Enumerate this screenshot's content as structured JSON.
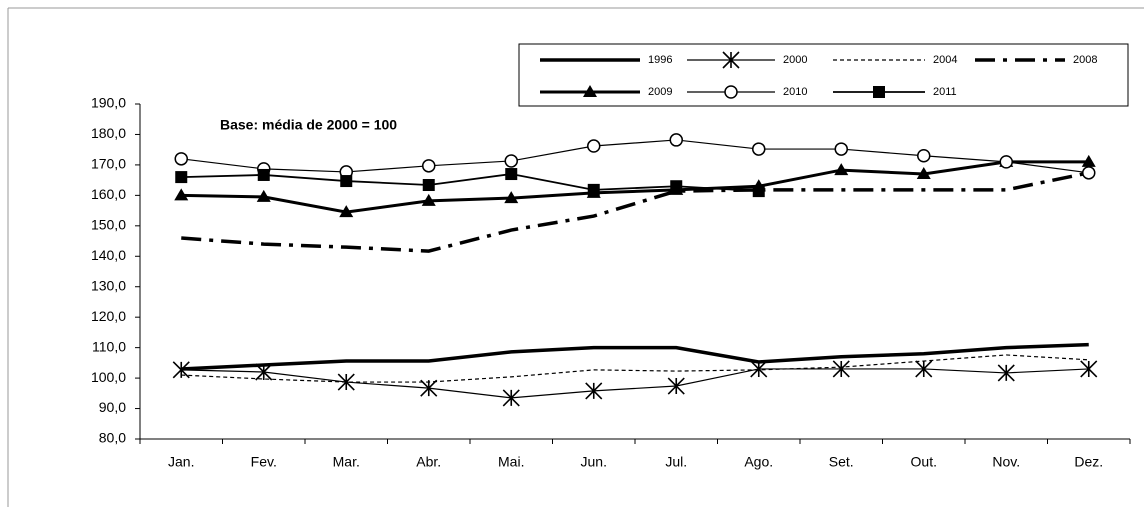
{
  "chart_data": {
    "type": "line",
    "annotation": "Base: média de 2000 = 100",
    "categories": [
      "Jan.",
      "Fev.",
      "Mar.",
      "Abr.",
      "Mai.",
      "Jun.",
      "Jul.",
      "Ago.",
      "Set.",
      "Out.",
      "Nov.",
      "Dez."
    ],
    "ylim": [
      80,
      190
    ],
    "yticks": [
      {
        "value": 80,
        "label": "80,0"
      },
      {
        "value": 90,
        "label": "90,0"
      },
      {
        "value": 100,
        "label": "100,0"
      },
      {
        "value": 110,
        "label": "110,0"
      },
      {
        "value": 120,
        "label": "120,0"
      },
      {
        "value": 130,
        "label": "130,0"
      },
      {
        "value": 140,
        "label": "140,0"
      },
      {
        "value": 150,
        "label": "150,0"
      },
      {
        "value": 160,
        "label": "160,0"
      },
      {
        "value": 170,
        "label": "170,0"
      },
      {
        "value": 180,
        "label": "180,0"
      },
      {
        "value": 190,
        "label": "190,0"
      }
    ],
    "grid": false,
    "legend": "top-right",
    "series": [
      {
        "name": "1996",
        "color": "#000000",
        "width": 3.5,
        "dash": "none",
        "marker": "none",
        "values": [
          103,
          104.3,
          105.6,
          105.6,
          108.6,
          110,
          110,
          105.3,
          107,
          108,
          110,
          111
        ]
      },
      {
        "name": "2000",
        "color": "#000000",
        "width": 1.2,
        "dash": "none",
        "marker": "asterisk",
        "values": [
          102.7,
          102,
          98.7,
          96.7,
          93.5,
          95.8,
          97.4,
          103,
          103,
          103,
          101.7,
          103
        ]
      },
      {
        "name": "2004",
        "color": "#000000",
        "width": 1.2,
        "dash": "4 3",
        "marker": "none",
        "values": [
          101,
          99.7,
          98.7,
          98.7,
          100.4,
          102.7,
          102.3,
          102.7,
          103.6,
          105.6,
          107.6,
          106
        ]
      },
      {
        "name": "2008",
        "color": "#000000",
        "width": 3.5,
        "dash": "20 8 4 8",
        "marker": "none",
        "values": [
          146,
          144,
          143,
          141.7,
          148.6,
          153.2,
          161.4,
          161.8,
          161.8,
          161.8,
          161.8,
          167.4
        ]
      },
      {
        "name": "2009",
        "color": "#000000",
        "width": 3,
        "dash": "none",
        "marker": "triangle",
        "values": [
          160,
          159.5,
          154.5,
          158.2,
          159.1,
          160.8,
          161.8,
          163,
          168.3,
          167,
          171,
          171
        ]
      },
      {
        "name": "2010",
        "color": "#000000",
        "width": 1.2,
        "dash": "none",
        "marker": "circle",
        "values": [
          172,
          168.7,
          167.7,
          169.7,
          171.3,
          176.2,
          178.2,
          175.2,
          175.2,
          173,
          171,
          167.4
        ]
      },
      {
        "name": "2011",
        "color": "#000000",
        "width": 1.8,
        "dash": "none",
        "marker": "square",
        "values": [
          166,
          166.7,
          164.7,
          163.4,
          167,
          161.8,
          163,
          161.4,
          null,
          null,
          null,
          null
        ]
      }
    ]
  }
}
